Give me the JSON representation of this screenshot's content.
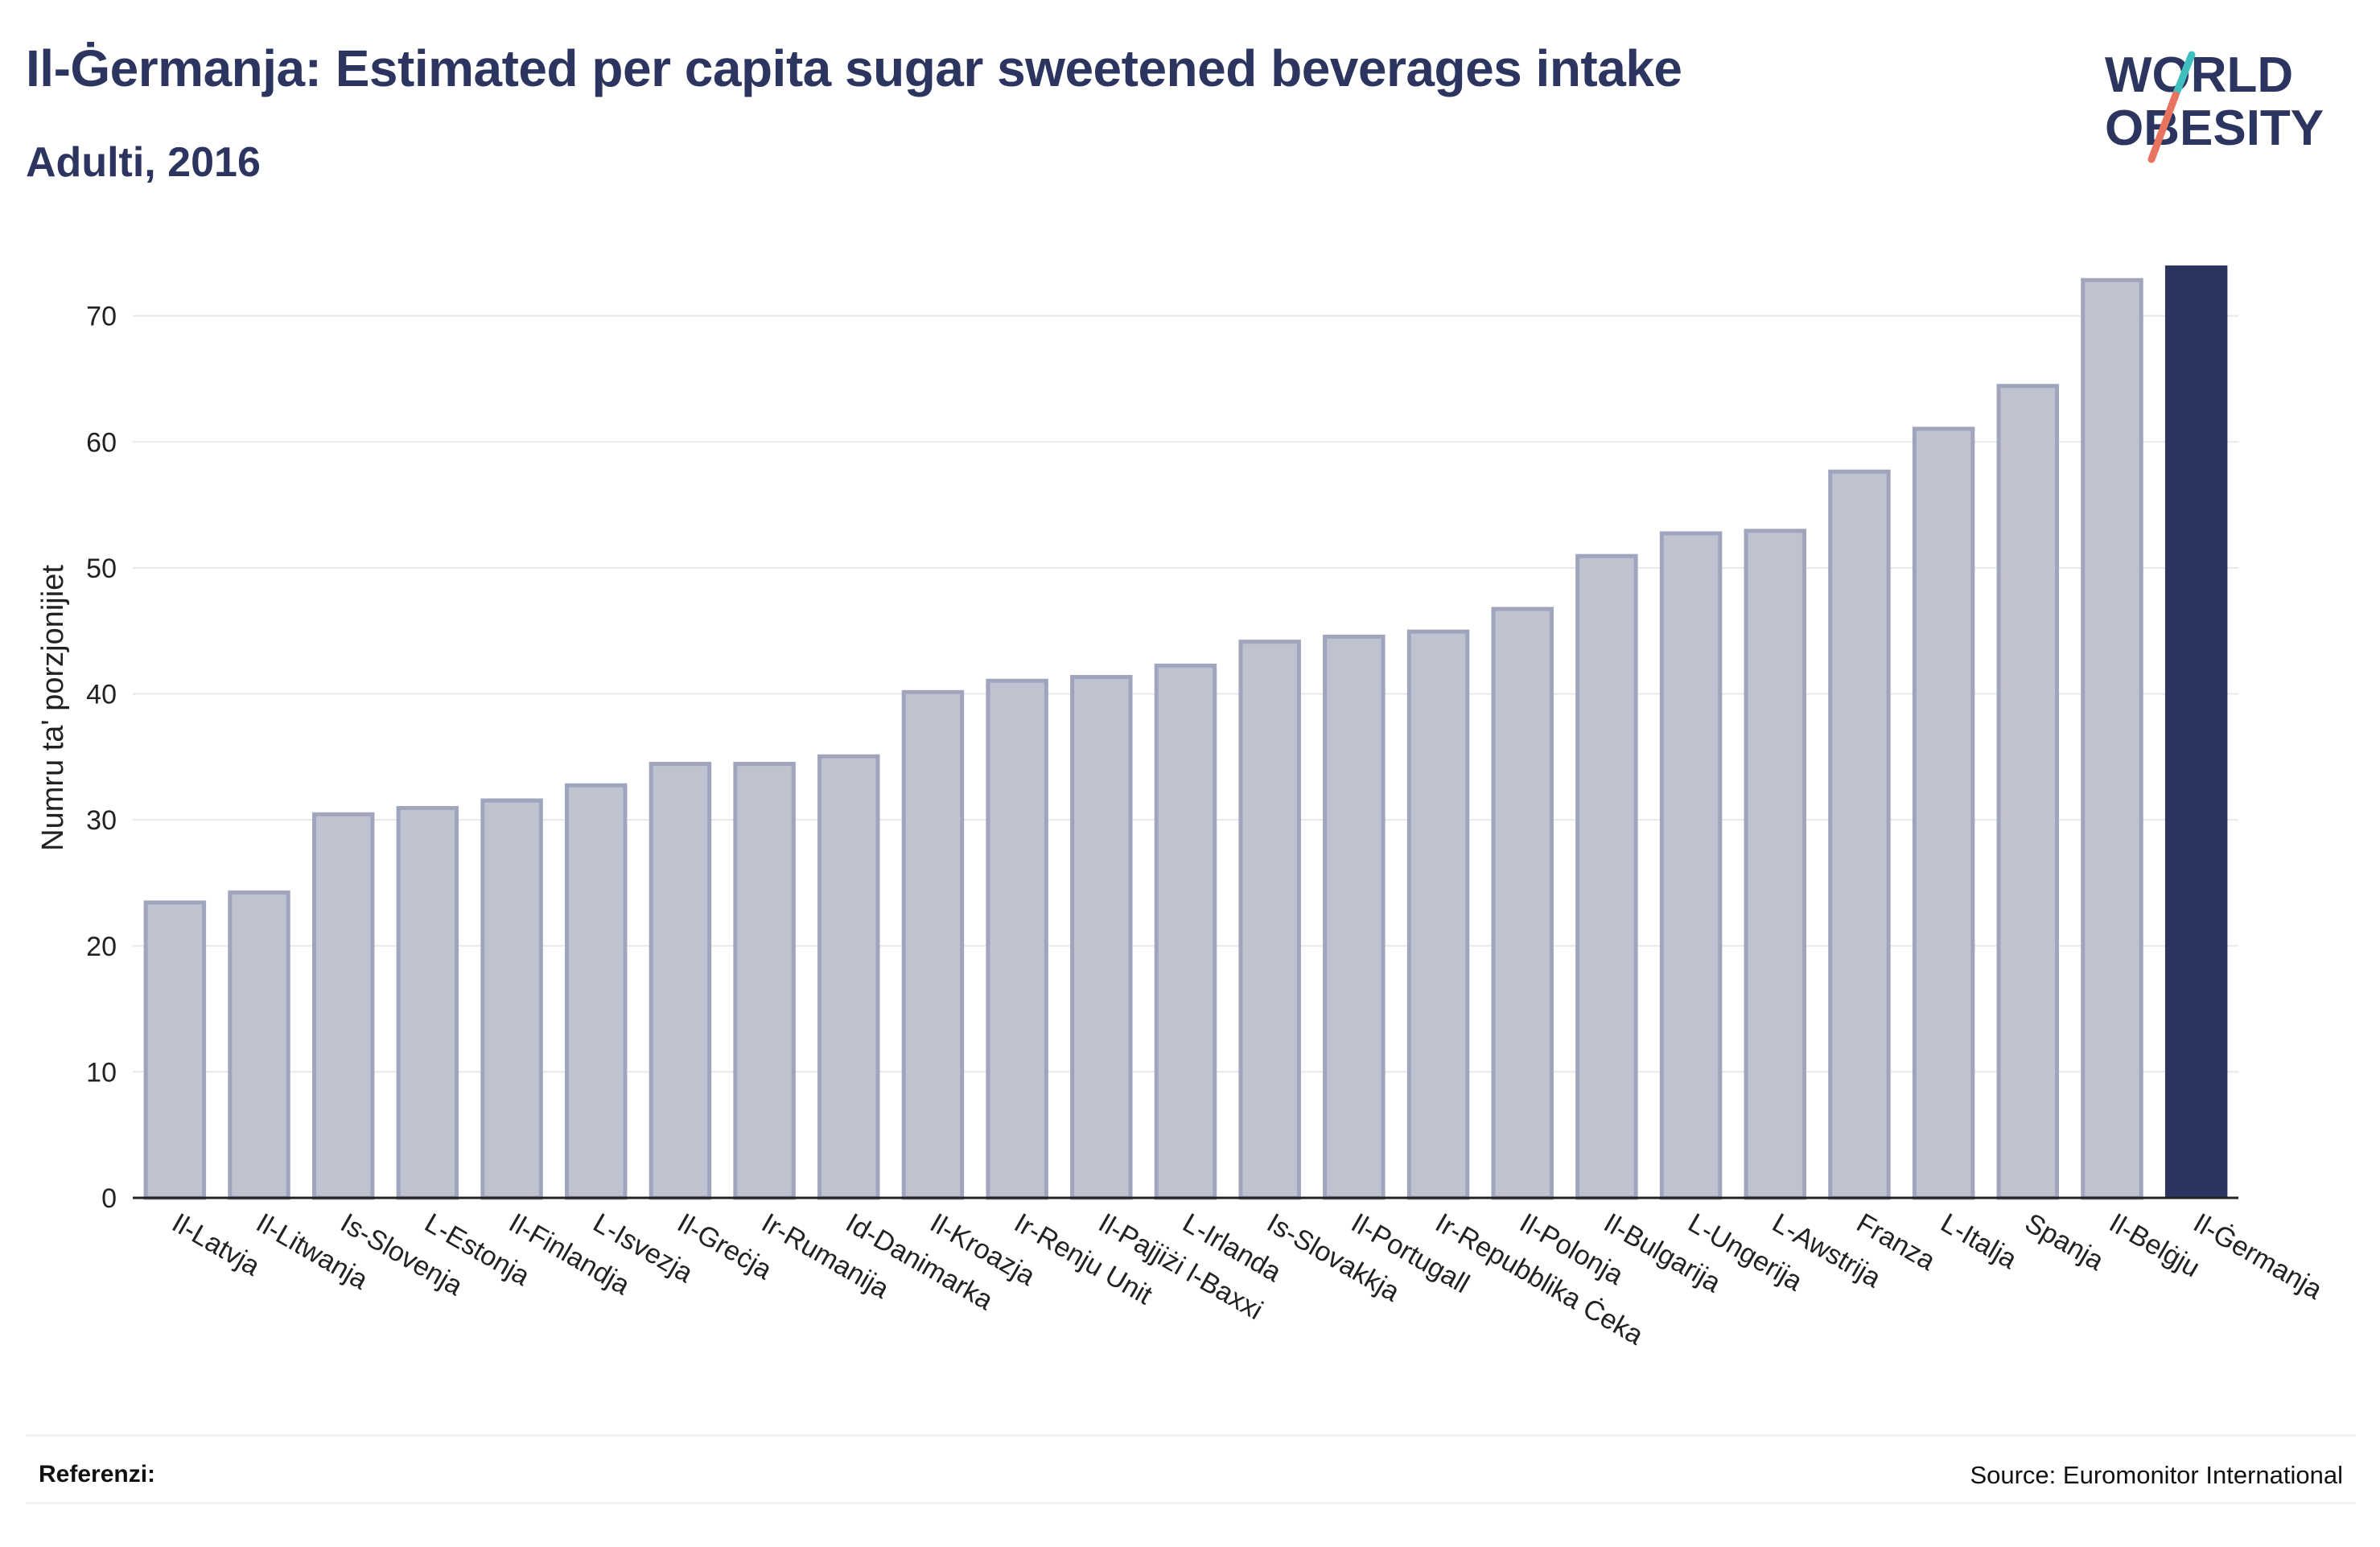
{
  "header": {
    "title": "Il-Ġermanja: Estimated per capita sugar sweetened beverages intake",
    "subtitle": "Adulti, 2016"
  },
  "logo": {
    "line1": "WORLD",
    "line2": "OBESITY",
    "colors": {
      "text": "#2b3560",
      "stroke_teal": "#3fbfbf",
      "stroke_coral": "#e8735f"
    }
  },
  "chart_data": {
    "type": "bar",
    "ylabel": "Numru ta' porzjonijiet",
    "xlabel": "",
    "ylim": [
      0,
      74
    ],
    "yticks": [
      0,
      10,
      20,
      30,
      40,
      50,
      60,
      70
    ],
    "grid": true,
    "categories": [
      "Il-Latvja",
      "Il-Litwanja",
      "Is-Slovenja",
      "L-Estonja",
      "Il-Finlandja",
      "L-Isvezja",
      "Il-Greċja",
      "Ir-Rumanija",
      "Id-Danimarka",
      "Il-Kroazja",
      "Ir-Renju Unit",
      "Il-Pajjiżi l-Baxxi",
      "L-Irlanda",
      "Is-Slovakkja",
      "Il-Portugall",
      "Ir-Repubblika Ċeka",
      "Il-Polonja",
      "Il-Bulgarija",
      "L-Ungerija",
      "L-Awstrija",
      "Franza",
      "L-Italja",
      "Spanja",
      "Il-Belġju",
      "Il-Ġermanja"
    ],
    "values": [
      23.6,
      24.4,
      30.6,
      31.1,
      31.7,
      32.9,
      34.6,
      34.6,
      35.2,
      40.3,
      41.2,
      41.5,
      42.4,
      44.3,
      44.7,
      45.1,
      46.9,
      51.1,
      52.9,
      53.1,
      57.8,
      61.2,
      64.6,
      73.0,
      74.0
    ],
    "highlight": "Il-Ġermanja",
    "colors": {
      "bar": "#bfc2cf",
      "bar_border": "#a0a5bd",
      "highlight": "#2b3560",
      "grid": "#e6e8ec"
    }
  },
  "footer": {
    "references_label": "Referenzi:",
    "source": "Source: Euromonitor International"
  }
}
